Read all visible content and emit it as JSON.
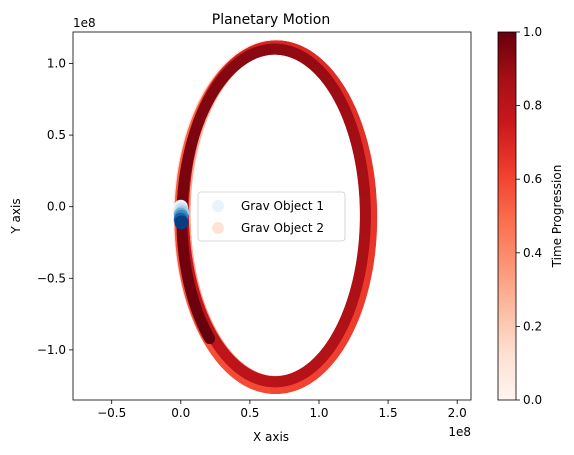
{
  "chart_data": {
    "type": "scatter",
    "title": "Planetary Motion",
    "xlabel": "X axis",
    "ylabel": "Y axis",
    "x_offset_label": "1e8",
    "y_offset_label": "1e8",
    "xlim": [
      -0.78,
      2.1
    ],
    "ylim": [
      -1.35,
      1.22
    ],
    "xticks": [
      -0.5,
      0.0,
      0.5,
      1.0,
      1.5,
      2.0
    ],
    "xtick_labels": [
      "−0.5",
      "0.0",
      "0.5",
      "1.0",
      "1.5",
      "2.0"
    ],
    "yticks": [
      -1.0,
      -0.5,
      0.0,
      0.5,
      1.0
    ],
    "ytick_labels": [
      "−1.0",
      "−0.5",
      "0.0",
      "0.5",
      "1.0"
    ],
    "grid": false,
    "legend_position": "center",
    "series": [
      {
        "name": "Grav Object 1",
        "colormap": "Blues",
        "points": [
          {
            "x": 0.0,
            "y": 0.0,
            "t": 0.05
          },
          {
            "x": 0.005,
            "y": -0.02,
            "t": 0.2
          },
          {
            "x": 0.01,
            "y": -0.04,
            "t": 0.35
          },
          {
            "x": 0.0,
            "y": -0.055,
            "t": 0.5
          },
          {
            "x": 0.005,
            "y": -0.07,
            "t": 0.65
          },
          {
            "x": 0.0,
            "y": -0.09,
            "t": 0.8
          },
          {
            "x": 0.005,
            "y": -0.11,
            "t": 0.95
          }
        ]
      },
      {
        "name": "Grav Object 2",
        "colormap": "Reds",
        "orbit": {
          "center_x": 0.685,
          "center_y": -0.065,
          "semi_major_x": 1.35,
          "semi_major_y": 1.18,
          "start_angle_deg": 10,
          "t_range": [
            0.0,
            1.0
          ],
          "revolutions": 4.6
        }
      }
    ],
    "colorbar": {
      "label": "Time Progression",
      "colormap": "Reds",
      "range": [
        0.0,
        1.0
      ],
      "ticks": [
        0.0,
        0.2,
        0.4,
        0.6,
        0.8,
        1.0
      ],
      "tick_labels": [
        "0.0",
        "0.2",
        "0.4",
        "0.6",
        "0.8",
        "1.0"
      ]
    },
    "colors": {
      "reds_low": "#fff5f0",
      "reds_mid": "#fb6a4a",
      "reds_high": "#67000d",
      "blues_low": "#f7fbff",
      "blues_high": "#08306b"
    }
  }
}
